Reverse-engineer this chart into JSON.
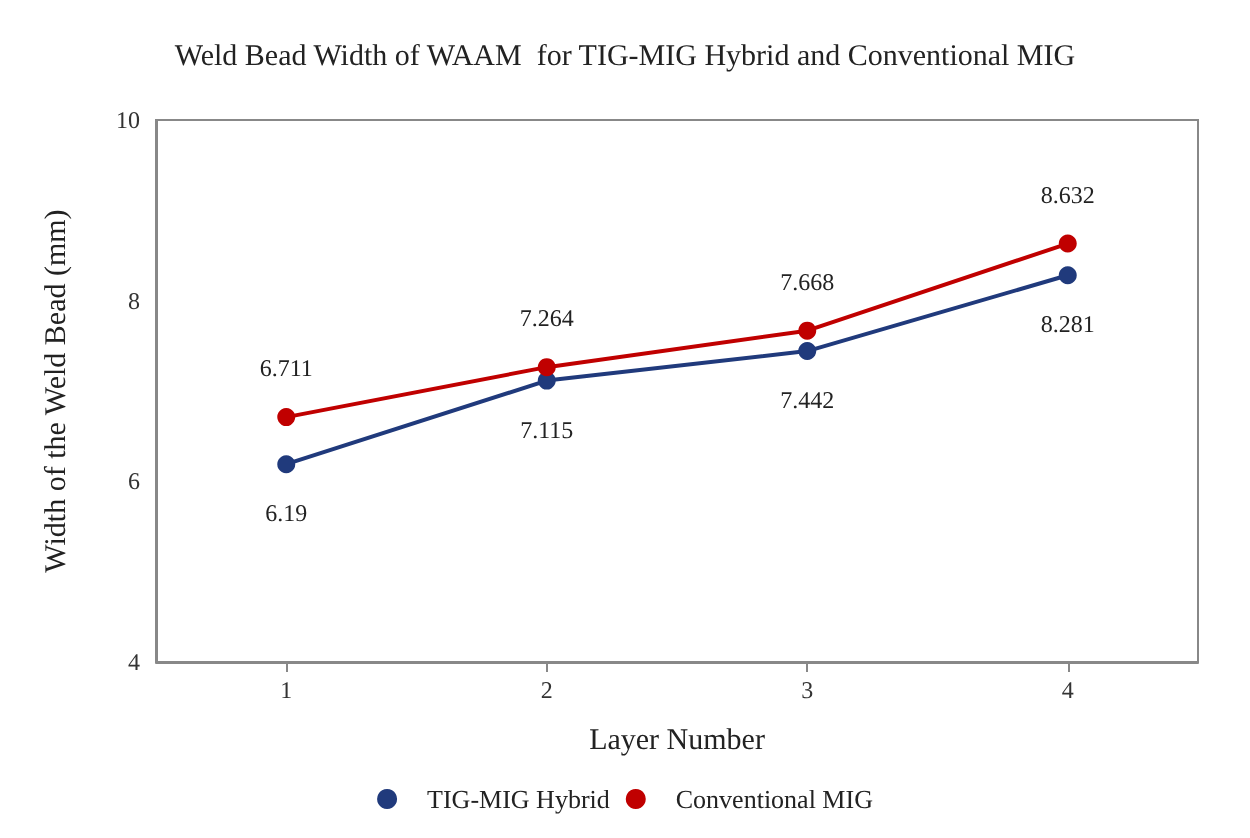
{
  "chart_data": {
    "type": "line",
    "title": "Weld Bead Width of WAAM  for TIG-MIG Hybrid and Conventional MIG",
    "xlabel": "Layer Number",
    "ylabel": "Width of the Weld Bead (mm)",
    "categories": [
      "1",
      "2",
      "3",
      "4"
    ],
    "series": [
      {
        "name": "TIG-MIG Hybrid",
        "color": "#203a7c",
        "values": [
          6.19,
          7.115,
          7.442,
          8.281
        ]
      },
      {
        "name": "Conventional MIG",
        "color": "#c00000",
        "values": [
          6.711,
          7.264,
          7.668,
          8.632
        ]
      }
    ],
    "ylim": [
      4,
      10
    ],
    "yticks": [
      4,
      6,
      8,
      10
    ],
    "grid": false,
    "legend": "bottom",
    "marker": "circle",
    "line_style": "solid",
    "data_labels": true
  }
}
